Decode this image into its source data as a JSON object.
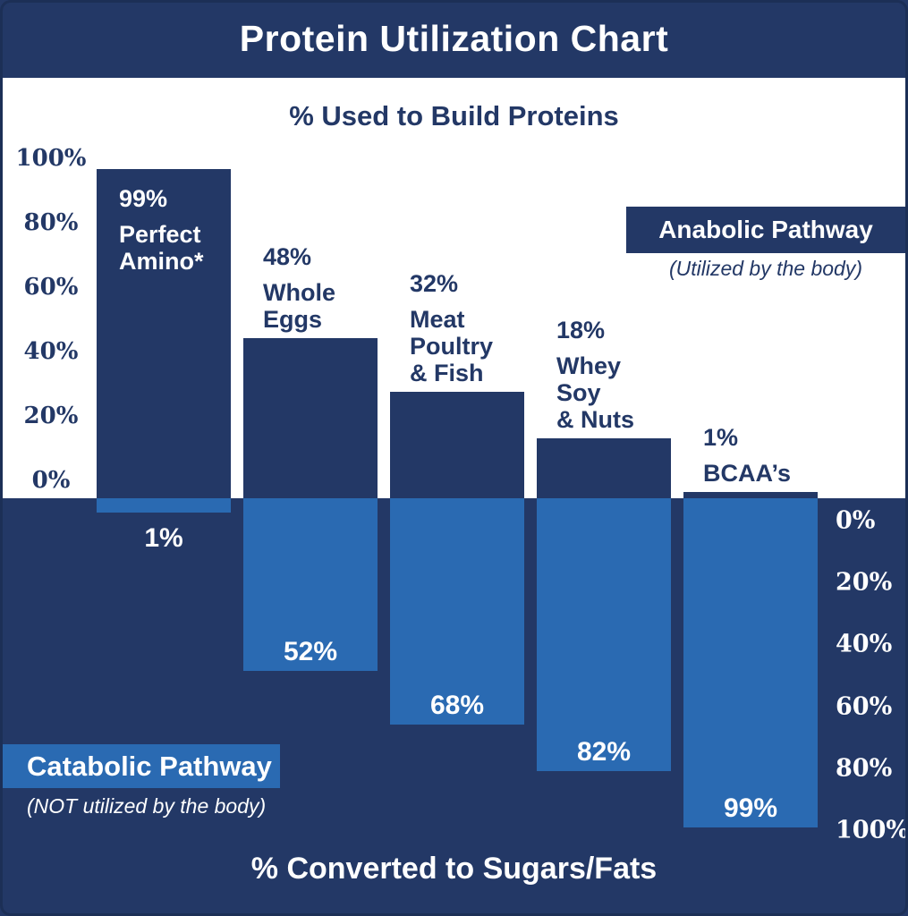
{
  "header": {
    "title": "Protein Utilization Chart"
  },
  "top_section": {
    "heading": "% Used to Build Proteins"
  },
  "bottom_section": {
    "heading": "% Converted to Sugars/Fats"
  },
  "legend": {
    "anabolic": {
      "label": "Anabolic Pathway",
      "sub": "(Utilized by the body)"
    },
    "catabolic": {
      "label": "Catabolic Pathway",
      "sub": "(NOT utilized by the body)"
    }
  },
  "colors": {
    "navy": "#233866",
    "blue": "#2a6ab2",
    "border": "#1c2f56",
    "white": "#ffffff"
  },
  "chart_data": {
    "type": "bar",
    "title": "Protein Utilization Chart",
    "subtitle_top": "% Used to Build Proteins",
    "subtitle_bottom": "% Converted to Sugars/Fats",
    "categories": [
      "Perfect Amino*",
      "Whole Eggs",
      "Meat Poultry & Fish",
      "Whey Soy & Nuts",
      "BCAA’s"
    ],
    "series": [
      {
        "name": "Anabolic Pathway (Utilized by the body) — % Used to Build Proteins",
        "values": [
          99,
          48,
          32,
          18,
          1
        ]
      },
      {
        "name": "Catabolic Pathway (NOT utilized by the body) — % Converted to Sugars/Fats",
        "values": [
          1,
          52,
          68,
          82,
          99
        ]
      }
    ],
    "axis_ticks_left": [
      "100%",
      "80%",
      "60%",
      "40%",
      "20%",
      "0%"
    ],
    "axis_ticks_right": [
      "0%",
      "20%",
      "40%",
      "60%",
      "80%",
      "100%"
    ],
    "ylim_top": [
      0,
      100
    ],
    "ylim_bottom": [
      0,
      100
    ],
    "grid": false,
    "legend_position": "anabolic right-top, catabolic left-bottom"
  },
  "bars": [
    {
      "value_label": "99%",
      "name_lines": [
        "Perfect",
        "Amino*"
      ],
      "down_label": "1%"
    },
    {
      "value_label": "48%",
      "name_lines": [
        "Whole",
        "Eggs"
      ],
      "down_label": "52%"
    },
    {
      "value_label": "32%",
      "name_lines": [
        "Meat",
        "Poultry",
        "& Fish"
      ],
      "down_label": "68%"
    },
    {
      "value_label": "18%",
      "name_lines": [
        "Whey",
        "Soy",
        "& Nuts"
      ],
      "down_label": "82%"
    },
    {
      "value_label": "1%",
      "name_lines": [
        "BCAA’s"
      ],
      "down_label": "99%"
    }
  ]
}
